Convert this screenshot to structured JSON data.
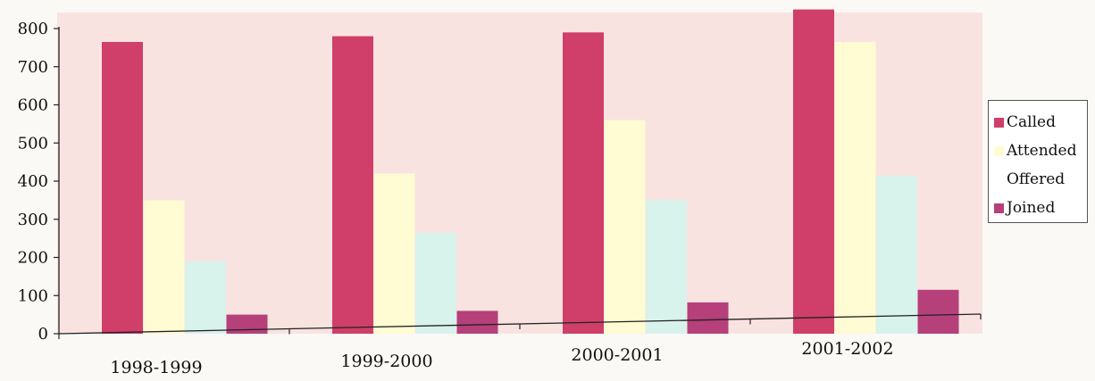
{
  "chart_data": {
    "type": "bar",
    "title": "",
    "xlabel": "",
    "ylabel": "",
    "categories": [
      "1998-1999",
      "1999-2000",
      "2000-2001",
      "2001-2002"
    ],
    "ylim": [
      0,
      800
    ],
    "yticks": [
      0,
      100,
      200,
      300,
      400,
      500,
      600,
      700,
      800
    ],
    "grid": false,
    "legend_position": "right",
    "series": [
      {
        "name": "Called",
        "color": "#cf3f6a",
        "values": [
          765,
          780,
          790,
          850
        ]
      },
      {
        "name": "Attended",
        "color": "#fffbd2",
        "values": [
          350,
          420,
          560,
          765
        ]
      },
      {
        "name": "Offered",
        "color": "#d8f2ec",
        "values": [
          190,
          265,
          350,
          415
        ]
      },
      {
        "name": "Joined",
        "color": "#b5407a",
        "values": [
          50,
          60,
          82,
          115
        ]
      }
    ]
  }
}
